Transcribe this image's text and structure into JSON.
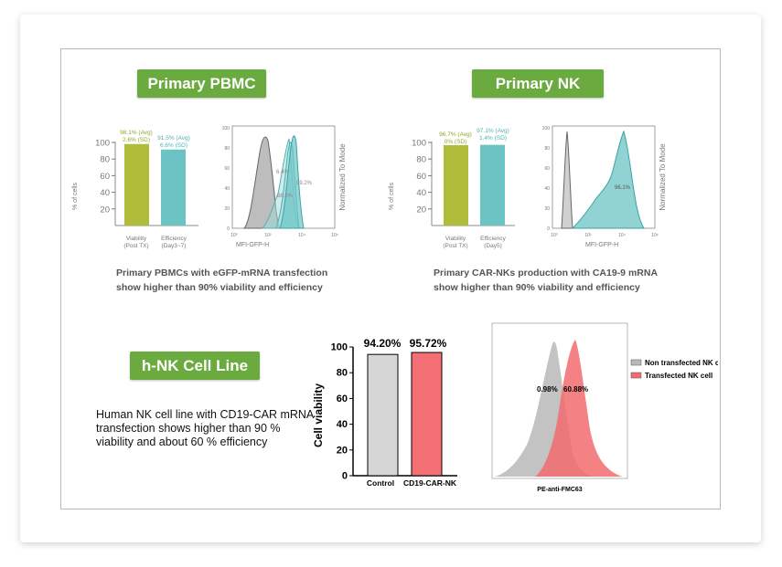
{
  "pills": {
    "pbmc": "Primary PBMC",
    "nk": "Primary NK",
    "hnk": "h-NK Cell Line"
  },
  "captions": {
    "pbmc_1": "Primary PBMCs with eGFP-mRNA transfection",
    "pbmc_2": "show higher than 90% viability and efficiency",
    "nk_1": "Primary CAR-NKs production with CA19-9 mRNA",
    "nk_2": "show higher than 90% viability and efficiency",
    "hnk_1": "Human NK cell line with CD19-CAR mRNA",
    "hnk_2": "transfection shows higher than 90 %",
    "hnk_3": "viability and about 60 % efficiency"
  },
  "colors": {
    "green_bar": "#b1bd3a",
    "teal_bar": "#6cc3c4",
    "pill": "#6aaa3e",
    "red": "#f47074",
    "gray": "#c8c8c8"
  },
  "chart_data": [
    {
      "type": "bar",
      "id": "pbmc-bars",
      "ylabel": "% of cells",
      "yticks": [
        20,
        40,
        60,
        80,
        100
      ],
      "ylim": [
        0,
        100
      ],
      "categories": [
        [
          "Viability",
          "(Post TX)"
        ],
        [
          "Efficiency",
          "(Day3~7)"
        ]
      ],
      "values": [
        98.1,
        91.5
      ],
      "data_labels": [
        [
          "98.1% (Avg)",
          "2.6% (SD)"
        ],
        [
          "91.5% (Avg)",
          "6.6% (SD)"
        ]
      ]
    },
    {
      "type": "area",
      "id": "pbmc-hist",
      "xlabel": "MFI-GFP-H",
      "ylabel": "Normalized To Mode",
      "yticks": [
        "0",
        "20",
        "40",
        "60",
        "80",
        "100"
      ],
      "xticks": [
        "10⁰",
        "10²",
        "10⁴",
        "10⁶"
      ],
      "annotations": [
        "6.4%",
        "88.0%",
        "99.2%"
      ]
    },
    {
      "type": "bar",
      "id": "nk-bars",
      "ylabel": "% of cells",
      "yticks": [
        20,
        40,
        60,
        80,
        100
      ],
      "ylim": [
        0,
        100
      ],
      "categories": [
        [
          "Viability",
          "(Post TX)"
        ],
        [
          "Efficiency",
          "(Day5)"
        ]
      ],
      "values": [
        96.7,
        97.1
      ],
      "data_labels": [
        [
          "96.7% (Avg)",
          "0% (SD)"
        ],
        [
          "97.1% (Avg)",
          "1.4% (SD)"
        ]
      ]
    },
    {
      "type": "area",
      "id": "nk-hist",
      "xlabel": "MFI-GFP-H",
      "ylabel": "Normalized To Mode",
      "yticks": [
        "0",
        "20",
        "40",
        "60",
        "80",
        "100"
      ],
      "xticks": [
        "10⁰",
        "10²",
        "10⁴",
        "10⁶"
      ],
      "annotations": [
        "96.1%"
      ]
    },
    {
      "type": "bar",
      "id": "hnk-bars",
      "ylabel": "Cell viability",
      "yticks": [
        0,
        20,
        40,
        60,
        80,
        100
      ],
      "ylim": [
        0,
        100
      ],
      "categories": [
        "Control",
        "CD19-CAR-NK"
      ],
      "values": [
        94.2,
        95.72
      ],
      "data_labels": [
        "94.20%",
        "95.72%"
      ]
    },
    {
      "type": "area",
      "id": "hnk-hist",
      "xlabel": "PE-anti-FMC63",
      "legend": [
        "Non transfected NK cell",
        "Transfected NK cell"
      ],
      "annotations": [
        "0.98%",
        "60.88%"
      ]
    }
  ]
}
